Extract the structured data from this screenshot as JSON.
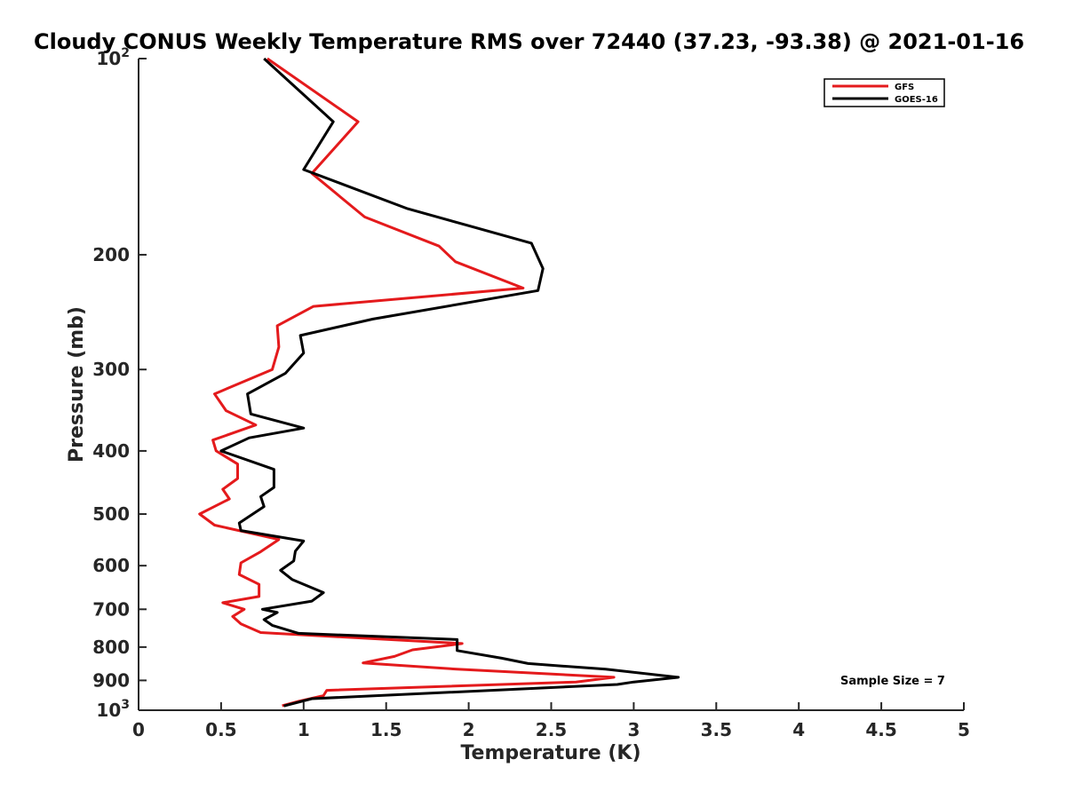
{
  "chart_data": {
    "type": "line",
    "title": "Cloudy CONUS Weekly Temperature RMS over 72440 (37.23, -93.38) @ 2021-01-16",
    "xlabel": "Temperature (K)",
    "ylabel": "Pressure (mb)",
    "xlim": [
      0,
      5
    ],
    "ylim": [
      100,
      1000
    ],
    "yscale": "log",
    "y_reversed": true,
    "grid": false,
    "legend_position": "top-right",
    "x_ticks": [
      0,
      0.5,
      1,
      1.5,
      2,
      2.5,
      3,
      3.5,
      4,
      4.5,
      5
    ],
    "x_tick_labels": [
      "0",
      "0.5",
      "1",
      "1.5",
      "2",
      "2.5",
      "3",
      "3.5",
      "4",
      "4.5",
      "5"
    ],
    "y_ticks": [
      100,
      200,
      300,
      400,
      500,
      600,
      700,
      800,
      900,
      1000
    ],
    "y_tick_labels": [
      {
        "base": "10",
        "exp": "2"
      },
      {
        "base": "200",
        "exp": ""
      },
      {
        "base": "300",
        "exp": ""
      },
      {
        "base": "400",
        "exp": ""
      },
      {
        "base": "500",
        "exp": ""
      },
      {
        "base": "600",
        "exp": ""
      },
      {
        "base": "700",
        "exp": ""
      },
      {
        "base": "800",
        "exp": ""
      },
      {
        "base": "900",
        "exp": ""
      },
      {
        "base": "10",
        "exp": "3"
      }
    ],
    "annotation": "Sample Size = 7",
    "series": [
      {
        "name": "GFS",
        "color": "#e41a1c",
        "points": [
          [
            0.78,
            100
          ],
          [
            1.33,
            125
          ],
          [
            1.05,
            150
          ],
          [
            1.37,
            175
          ],
          [
            1.82,
            194
          ],
          [
            1.92,
            205
          ],
          [
            2.33,
            225
          ],
          [
            1.06,
            240
          ],
          [
            0.84,
            257
          ],
          [
            0.85,
            277
          ],
          [
            0.81,
            300
          ],
          [
            0.46,
            327
          ],
          [
            0.53,
            347
          ],
          [
            0.71,
            365
          ],
          [
            0.45,
            385
          ],
          [
            0.47,
            400
          ],
          [
            0.6,
            419
          ],
          [
            0.6,
            441
          ],
          [
            0.51,
            458
          ],
          [
            0.55,
            474
          ],
          [
            0.37,
            500
          ],
          [
            0.46,
            520
          ],
          [
            0.85,
            547
          ],
          [
            0.74,
            571
          ],
          [
            0.62,
            594
          ],
          [
            0.61,
            619
          ],
          [
            0.73,
            641
          ],
          [
            0.73,
            669
          ],
          [
            0.51,
            684
          ],
          [
            0.64,
            700
          ],
          [
            0.57,
            718
          ],
          [
            0.62,
            737
          ],
          [
            0.74,
            760
          ],
          [
            1.96,
            790
          ],
          [
            1.66,
            808
          ],
          [
            1.55,
            827
          ],
          [
            1.36,
            846
          ],
          [
            1.93,
            865
          ],
          [
            2.88,
            890
          ],
          [
            2.65,
            905
          ],
          [
            1.14,
            932
          ],
          [
            1.12,
            950
          ],
          [
            0.97,
            969
          ],
          [
            0.87,
            984
          ]
        ]
      },
      {
        "name": "GOES-16",
        "color": "#000000",
        "points": [
          [
            0.76,
            100
          ],
          [
            1.18,
            125
          ],
          [
            1.0,
            148
          ],
          [
            1.63,
            170
          ],
          [
            2.38,
            192
          ],
          [
            2.45,
            210
          ],
          [
            2.42,
            227
          ],
          [
            1.42,
            251
          ],
          [
            0.98,
            266
          ],
          [
            1.0,
            283
          ],
          [
            0.89,
            304
          ],
          [
            0.66,
            327
          ],
          [
            0.68,
            351
          ],
          [
            1.0,
            369
          ],
          [
            0.67,
            382
          ],
          [
            0.5,
            400
          ],
          [
            0.82,
            427
          ],
          [
            0.82,
            455
          ],
          [
            0.74,
            470
          ],
          [
            0.76,
            487
          ],
          [
            0.61,
            516
          ],
          [
            0.62,
            530
          ],
          [
            1.0,
            550
          ],
          [
            0.95,
            570
          ],
          [
            0.94,
            590
          ],
          [
            0.86,
            610
          ],
          [
            0.93,
            630
          ],
          [
            1.12,
            660
          ],
          [
            1.05,
            680
          ],
          [
            0.75,
            700
          ],
          [
            0.84,
            708
          ],
          [
            0.76,
            726
          ],
          [
            0.81,
            741
          ],
          [
            0.97,
            762
          ],
          [
            1.93,
            779
          ],
          [
            1.93,
            810
          ],
          [
            2.2,
            832
          ],
          [
            2.36,
            848
          ],
          [
            2.83,
            865
          ],
          [
            3.27,
            890
          ],
          [
            3.0,
            905
          ],
          [
            2.9,
            913
          ],
          [
            1.05,
            960
          ],
          [
            0.88,
            985
          ]
        ]
      }
    ]
  }
}
